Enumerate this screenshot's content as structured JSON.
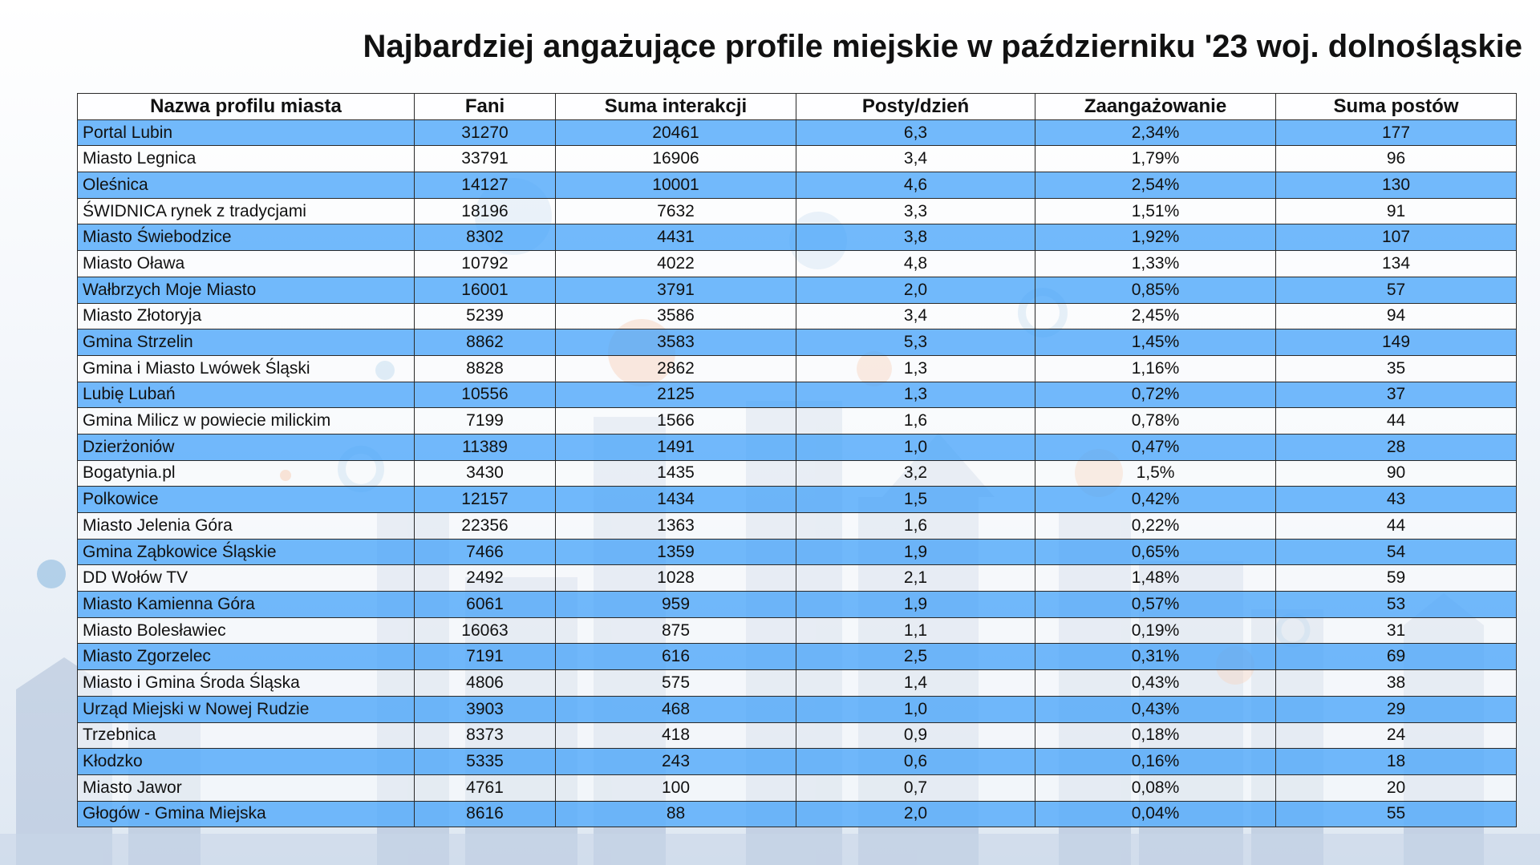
{
  "chart_data": {
    "type": "table",
    "title": "Najbardziej angażujące profile miejskie w październiku '23 woj. dolnośląskie",
    "columns": [
      "Nazwa profilu miasta",
      "Fani",
      "Suma interakcji",
      "Posty/dzień",
      "Zaangażowanie",
      "Suma postów"
    ],
    "rows": [
      [
        "Portal Lubin",
        "31270",
        "20461",
        "6,3",
        "2,34%",
        "177"
      ],
      [
        "Miasto Legnica",
        "33791",
        "16906",
        "3,4",
        "1,79%",
        "96"
      ],
      [
        "Oleśnica",
        "14127",
        "10001",
        "4,6",
        "2,54%",
        "130"
      ],
      [
        "ŚWIDNICA rynek z tradycjami",
        "18196",
        "7632",
        "3,3",
        "1,51%",
        "91"
      ],
      [
        "Miasto Świebodzice",
        "8302",
        "4431",
        "3,8",
        "1,92%",
        "107"
      ],
      [
        "Miasto Oława",
        "10792",
        "4022",
        "4,8",
        "1,33%",
        "134"
      ],
      [
        "Wałbrzych Moje Miasto",
        "16001",
        "3791",
        "2,0",
        "0,85%",
        "57"
      ],
      [
        "Miasto Złotoryja",
        "5239",
        "3586",
        "3,4",
        "2,45%",
        "94"
      ],
      [
        "Gmina Strzelin",
        "8862",
        "3583",
        "5,3",
        "1,45%",
        "149"
      ],
      [
        "Gmina i Miasto Lwówek Śląski",
        "8828",
        "2862",
        "1,3",
        "1,16%",
        "35"
      ],
      [
        "Lubię Lubań",
        "10556",
        "2125",
        "1,3",
        "0,72%",
        "37"
      ],
      [
        "Gmina Milicz w powiecie milickim",
        "7199",
        "1566",
        "1,6",
        "0,78%",
        "44"
      ],
      [
        "Dzierżoniów",
        "11389",
        "1491",
        "1,0",
        "0,47%",
        "28"
      ],
      [
        "Bogatynia.pl",
        "3430",
        "1435",
        "3,2",
        "1,5%",
        "90"
      ],
      [
        "Polkowice",
        "12157",
        "1434",
        "1,5",
        "0,42%",
        "43"
      ],
      [
        "Miasto Jelenia Góra",
        "22356",
        "1363",
        "1,6",
        "0,22%",
        "44"
      ],
      [
        "Gmina Ząbkowice Śląskie",
        "7466",
        "1359",
        "1,9",
        "0,65%",
        "54"
      ],
      [
        "DD Wołów TV",
        "2492",
        "1028",
        "2,1",
        "1,48%",
        "59"
      ],
      [
        "Miasto Kamienna Góra",
        "6061",
        "959",
        "1,9",
        "0,57%",
        "53"
      ],
      [
        "Miasto Bolesławiec",
        "16063",
        "875",
        "1,1",
        "0,19%",
        "31"
      ],
      [
        "Miasto Zgorzelec",
        "7191",
        "616",
        "2,5",
        "0,31%",
        "69"
      ],
      [
        "Miasto i Gmina Środa Śląska",
        "4806",
        "575",
        "1,4",
        "0,43%",
        "38"
      ],
      [
        "Urząd Miejski w Nowej Rudzie",
        "3903",
        "468",
        "1,0",
        "0,43%",
        "29"
      ],
      [
        "Trzebnica",
        "8373",
        "418",
        "0,9",
        "0,18%",
        "24"
      ],
      [
        "Kłodzko",
        "5335",
        "243",
        "0,6",
        "0,16%",
        "18"
      ],
      [
        "Miasto Jawor",
        "4761",
        "100",
        "0,7",
        "0,08%",
        "20"
      ],
      [
        "Głogów - Gmina Miejska",
        "8616",
        "88",
        "2,0",
        "0,04%",
        "55"
      ]
    ]
  },
  "colors": {
    "highlight_row": "#5fafFA",
    "plain_row": "#ffffff",
    "text": "#111111",
    "accent_orange": "#f0a070",
    "accent_blue": "#6fa8d8"
  }
}
